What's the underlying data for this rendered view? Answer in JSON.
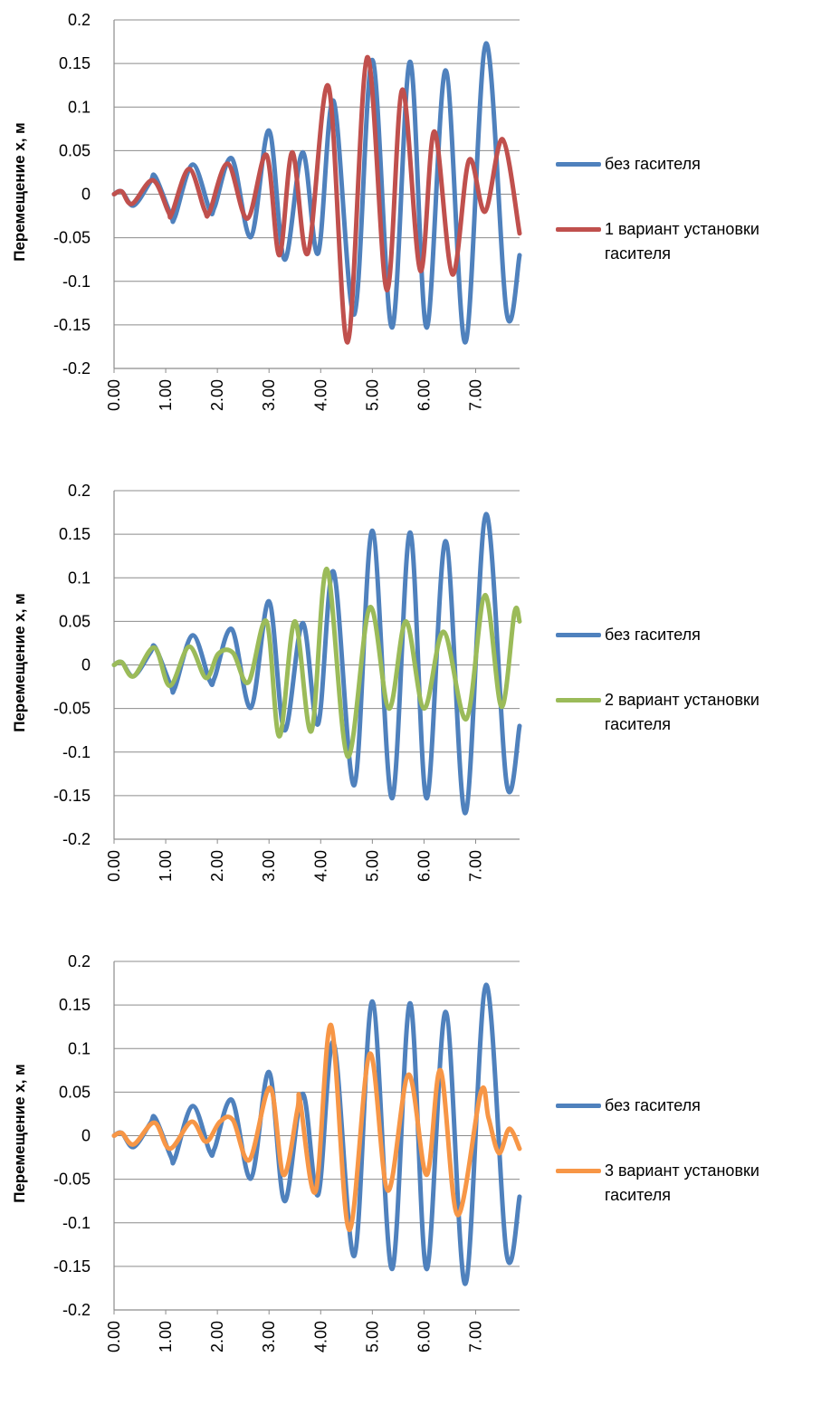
{
  "chart_data": [
    {
      "type": "line",
      "title": "",
      "xlabel": "",
      "ylabel": "Перемещение x, м",
      "xlim": [
        0,
        7.85
      ],
      "ylim": [
        -0.2,
        0.2
      ],
      "yticks": [
        "0.2",
        "0.15",
        "0.1",
        "0.05",
        "0",
        "-0.05",
        "-0.1",
        "-0.15",
        "-0.2"
      ],
      "xticks": [
        "0.00",
        "1.00",
        "2.00",
        "3.00",
        "4.00",
        "5.00",
        "6.00",
        "7.00"
      ],
      "grid": "horizontal",
      "legend_position": "right",
      "series": [
        {
          "name": "без гасителя",
          "color": "#4F81BD",
          "points": [
            [
              0,
              0
            ],
            [
              0.15,
              0.003
            ],
            [
              0.38,
              -0.013
            ],
            [
              0.7,
              0.014
            ],
            [
              0.8,
              0.02
            ],
            [
              1.1,
              -0.024
            ],
            [
              1.18,
              -0.026
            ],
            [
              1.52,
              0.034
            ],
            [
              1.85,
              -0.018
            ],
            [
              1.95,
              -0.014
            ],
            [
              2.28,
              0.041
            ],
            [
              2.65,
              -0.049
            ],
            [
              3.0,
              0.073
            ],
            [
              3.3,
              -0.075
            ],
            [
              3.65,
              0.048
            ],
            [
              3.95,
              -0.068
            ],
            [
              4.25,
              0.107
            ],
            [
              4.65,
              -0.138
            ],
            [
              5.0,
              0.154
            ],
            [
              5.38,
              -0.153
            ],
            [
              5.73,
              0.152
            ],
            [
              6.05,
              -0.153
            ],
            [
              6.42,
              0.142
            ],
            [
              6.8,
              -0.17
            ],
            [
              7.2,
              0.173
            ],
            [
              7.6,
              -0.136
            ],
            [
              7.85,
              -0.07
            ]
          ]
        },
        {
          "name": "1 вариант установки гасителя",
          "color": "#C0504D",
          "points": [
            [
              0,
              0
            ],
            [
              0.15,
              0.003
            ],
            [
              0.35,
              -0.011
            ],
            [
              0.75,
              0.016
            ],
            [
              1.05,
              -0.02
            ],
            [
              1.12,
              -0.022
            ],
            [
              1.45,
              0.029
            ],
            [
              1.75,
              -0.018
            ],
            [
              1.85,
              -0.02
            ],
            [
              2.2,
              0.035
            ],
            [
              2.58,
              -0.028
            ],
            [
              2.95,
              0.045
            ],
            [
              3.2,
              -0.07
            ],
            [
              3.45,
              0.048
            ],
            [
              3.75,
              -0.068
            ],
            [
              4.15,
              0.124
            ],
            [
              4.52,
              -0.17
            ],
            [
              4.9,
              0.157
            ],
            [
              5.28,
              -0.11
            ],
            [
              5.58,
              0.12
            ],
            [
              5.93,
              -0.088
            ],
            [
              6.2,
              0.072
            ],
            [
              6.55,
              -0.092
            ],
            [
              6.87,
              0.039
            ],
            [
              7.18,
              -0.02
            ],
            [
              7.52,
              0.063
            ],
            [
              7.85,
              -0.045
            ]
          ]
        }
      ]
    },
    {
      "type": "line",
      "title": "",
      "xlabel": "",
      "ylabel": "Перемещение x, м",
      "xlim": [
        0,
        7.85
      ],
      "ylim": [
        -0.2,
        0.2
      ],
      "yticks": [
        "0.2",
        "0.15",
        "0.1",
        "0.05",
        "0",
        "-0.05",
        "-0.1",
        "-0.15",
        "-0.2"
      ],
      "xticks": [
        "0.00",
        "1.00",
        "2.00",
        "3.00",
        "4.00",
        "5.00",
        "6.00",
        "7.00"
      ],
      "grid": "horizontal",
      "legend_position": "right",
      "series": [
        {
          "name": "без гасителя",
          "color": "#4F81BD",
          "points": [
            [
              0,
              0
            ],
            [
              0.15,
              0.003
            ],
            [
              0.38,
              -0.013
            ],
            [
              0.7,
              0.014
            ],
            [
              0.8,
              0.02
            ],
            [
              1.1,
              -0.024
            ],
            [
              1.18,
              -0.026
            ],
            [
              1.52,
              0.034
            ],
            [
              1.85,
              -0.018
            ],
            [
              1.95,
              -0.014
            ],
            [
              2.28,
              0.041
            ],
            [
              2.65,
              -0.049
            ],
            [
              3.0,
              0.073
            ],
            [
              3.3,
              -0.075
            ],
            [
              3.65,
              0.048
            ],
            [
              3.95,
              -0.068
            ],
            [
              4.25,
              0.107
            ],
            [
              4.65,
              -0.138
            ],
            [
              5.0,
              0.154
            ],
            [
              5.38,
              -0.153
            ],
            [
              5.73,
              0.152
            ],
            [
              6.05,
              -0.153
            ],
            [
              6.42,
              0.142
            ],
            [
              6.8,
              -0.17
            ],
            [
              7.2,
              0.173
            ],
            [
              7.6,
              -0.136
            ],
            [
              7.85,
              -0.07
            ]
          ]
        },
        {
          "name": "2 вариант установки гасителя",
          "color": "#9BBB59",
          "points": [
            [
              0,
              0
            ],
            [
              0.15,
              0.003
            ],
            [
              0.38,
              -0.013
            ],
            [
              0.78,
              0.02
            ],
            [
              1.08,
              -0.024
            ],
            [
              1.45,
              0.021
            ],
            [
              1.78,
              -0.015
            ],
            [
              2.02,
              0.013
            ],
            [
              2.3,
              0.014
            ],
            [
              2.6,
              -0.02
            ],
            [
              2.95,
              0.05
            ],
            [
              3.2,
              -0.082
            ],
            [
              3.5,
              0.05
            ],
            [
              3.82,
              -0.076
            ],
            [
              4.12,
              0.11
            ],
            [
              4.52,
              -0.105
            ],
            [
              4.95,
              0.066
            ],
            [
              5.32,
              -0.05
            ],
            [
              5.65,
              0.05
            ],
            [
              6.0,
              -0.05
            ],
            [
              6.38,
              0.038
            ],
            [
              6.82,
              -0.062
            ],
            [
              7.18,
              0.08
            ],
            [
              7.5,
              -0.048
            ],
            [
              7.75,
              0.06
            ],
            [
              7.85,
              0.05
            ]
          ]
        }
      ]
    },
    {
      "type": "line",
      "title": "",
      "xlabel": "",
      "ylabel": "Перемещение x, м",
      "xlim": [
        0,
        7.85
      ],
      "ylim": [
        -0.2,
        0.2
      ],
      "yticks": [
        "0.2",
        "0.15",
        "0.1",
        "0.05",
        "0",
        "-0.05",
        "-0.1",
        "-0.15",
        "-0.2"
      ],
      "xticks": [
        "0.00",
        "1.00",
        "2.00",
        "3.00",
        "4.00",
        "5.00",
        "6.00",
        "7.00"
      ],
      "grid": "horizontal",
      "legend_position": "right",
      "series": [
        {
          "name": "без гасителя",
          "color": "#4F81BD",
          "points": [
            [
              0,
              0
            ],
            [
              0.15,
              0.003
            ],
            [
              0.38,
              -0.013
            ],
            [
              0.7,
              0.014
            ],
            [
              0.8,
              0.02
            ],
            [
              1.1,
              -0.024
            ],
            [
              1.18,
              -0.026
            ],
            [
              1.52,
              0.034
            ],
            [
              1.85,
              -0.018
            ],
            [
              1.95,
              -0.014
            ],
            [
              2.28,
              0.041
            ],
            [
              2.65,
              -0.049
            ],
            [
              3.0,
              0.073
            ],
            [
              3.3,
              -0.075
            ],
            [
              3.65,
              0.048
            ],
            [
              3.95,
              -0.068
            ],
            [
              4.25,
              0.107
            ],
            [
              4.65,
              -0.138
            ],
            [
              5.0,
              0.154
            ],
            [
              5.38,
              -0.153
            ],
            [
              5.73,
              0.152
            ],
            [
              6.05,
              -0.153
            ],
            [
              6.42,
              0.142
            ],
            [
              6.8,
              -0.17
            ],
            [
              7.2,
              0.173
            ],
            [
              7.6,
              -0.136
            ],
            [
              7.85,
              -0.07
            ]
          ]
        },
        {
          "name": "3 вариант установки гасителя",
          "color": "#F79646",
          "points": [
            [
              0,
              0
            ],
            [
              0.15,
              0.003
            ],
            [
              0.38,
              -0.01
            ],
            [
              0.78,
              0.015
            ],
            [
              1.08,
              -0.015
            ],
            [
              1.5,
              0.016
            ],
            [
              1.78,
              -0.007
            ],
            [
              2.05,
              0.016
            ],
            [
              2.3,
              0.018
            ],
            [
              2.62,
              -0.028
            ],
            [
              3.02,
              0.055
            ],
            [
              3.28,
              -0.045
            ],
            [
              3.55,
              0.03
            ],
            [
              3.6,
              0.04
            ],
            [
              3.9,
              -0.064
            ],
            [
              4.2,
              0.127
            ],
            [
              4.55,
              -0.108
            ],
            [
              4.95,
              0.094
            ],
            [
              5.3,
              -0.063
            ],
            [
              5.7,
              0.07
            ],
            [
              6.05,
              -0.045
            ],
            [
              6.32,
              0.075
            ],
            [
              6.65,
              -0.091
            ],
            [
              7.1,
              0.05
            ],
            [
              7.25,
              0.02
            ],
            [
              7.45,
              -0.02
            ],
            [
              7.65,
              0.008
            ],
            [
              7.85,
              -0.015
            ]
          ]
        }
      ]
    }
  ]
}
